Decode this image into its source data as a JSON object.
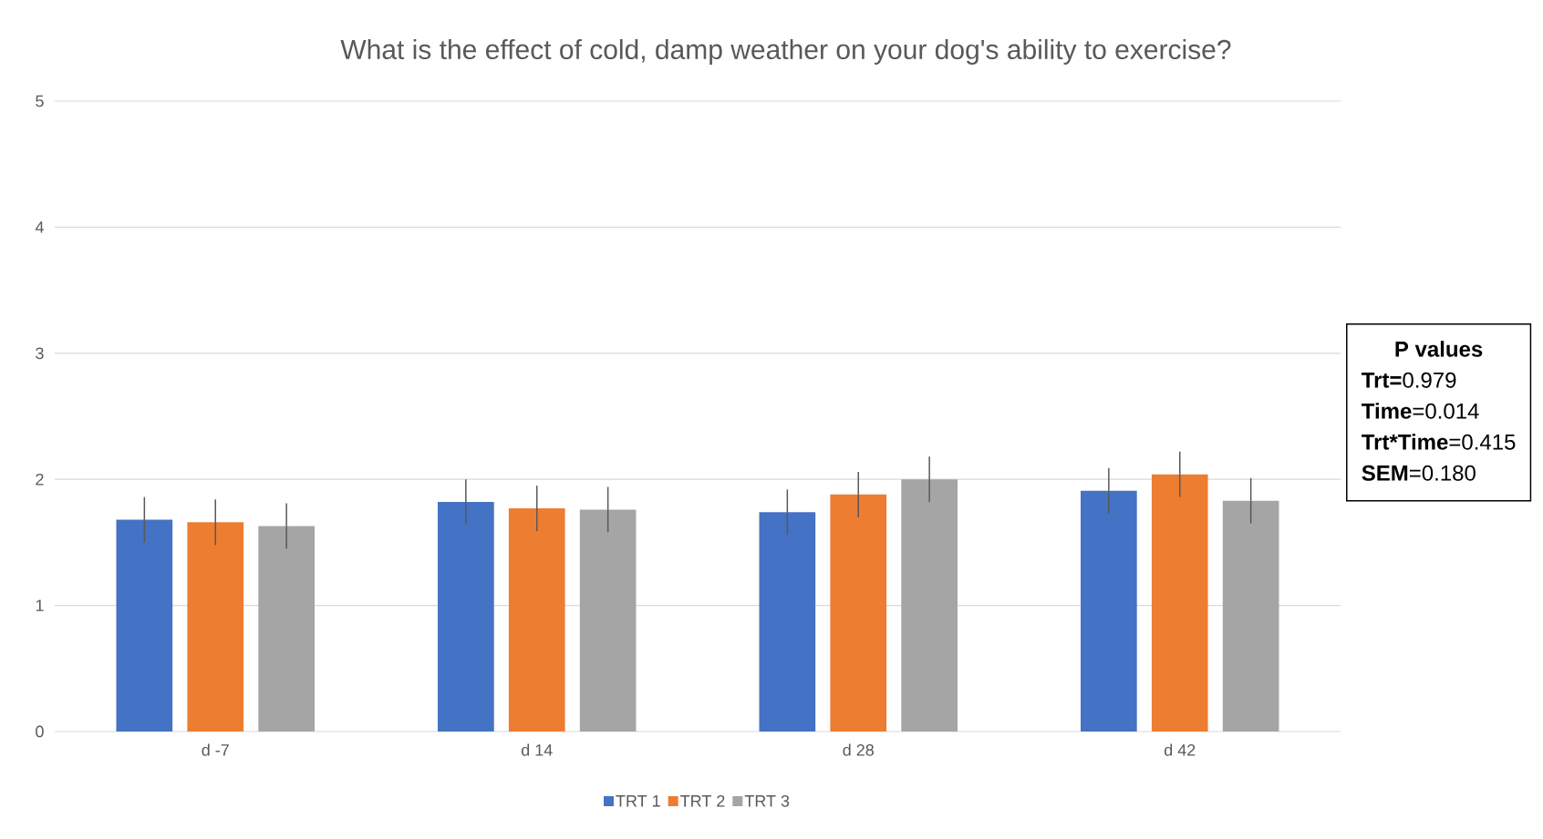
{
  "chart_data": {
    "type": "bar",
    "title": "What is the effect of cold, damp weather on your dog's ability to exercise?",
    "categories": [
      "d -7",
      "d 14",
      "d 28",
      "d 42"
    ],
    "series": [
      {
        "name": "TRT 1",
        "color": "#4472c4",
        "values": [
          1.68,
          1.82,
          1.74,
          1.91
        ],
        "errors": [
          0.18,
          0.18,
          0.18,
          0.18
        ]
      },
      {
        "name": "TRT 2",
        "color": "#ed7d31",
        "values": [
          1.66,
          1.77,
          1.88,
          2.04
        ],
        "errors": [
          0.18,
          0.18,
          0.18,
          0.18
        ]
      },
      {
        "name": "TRT 3",
        "color": "#a5a5a5",
        "values": [
          1.63,
          1.76,
          2.0,
          1.83
        ],
        "errors": [
          0.18,
          0.18,
          0.18,
          0.18
        ]
      }
    ],
    "ylim": [
      0,
      5
    ],
    "yticks": [
      0,
      1,
      2,
      3,
      4,
      5
    ],
    "grid": "y",
    "legend": "bottom",
    "annotations": [
      "P values",
      "**Trt=**0.979",
      "**Time**=0.014",
      "**Trt*Time**=0.415",
      "**SEM**=0.180"
    ]
  }
}
